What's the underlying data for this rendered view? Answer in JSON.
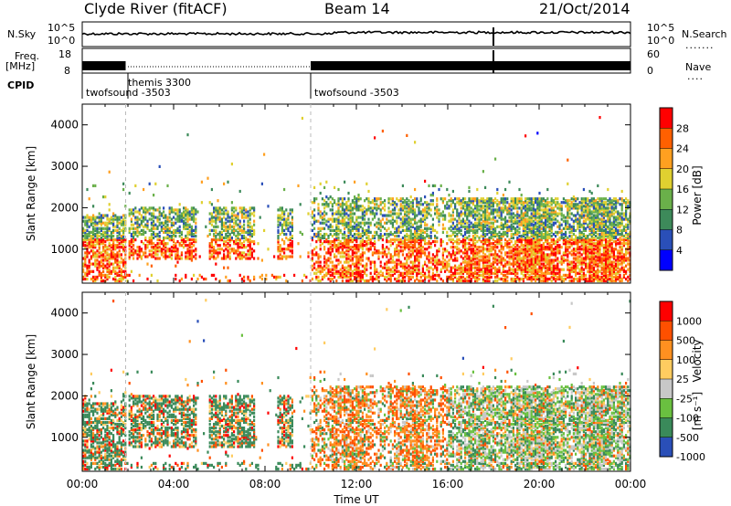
{
  "header": {
    "station": "Clyde River (fitACF)",
    "beam": "Beam 14",
    "date": "21/Oct/2014"
  },
  "strip": {
    "nsky_label": "N.Sky",
    "nsearch_label": "N.Search",
    "freq_label": "Freq.",
    "freq_unit": "[MHz]",
    "nave_label": "Nave",
    "cpid_label": "CPID",
    "noise_ticks": [
      "10^5",
      "10^0"
    ],
    "freq_ticks": [
      "18",
      "8"
    ],
    "nave_ticks": [
      "60",
      "0"
    ],
    "cpid_segments": [
      {
        "name": "twofsound -3503",
        "start_hour": 0.0,
        "end_hour": 1.9
      },
      {
        "name": "themis 3300",
        "start_hour": 1.9,
        "end_hour": 10.0
      },
      {
        "name": "twofsound -3503",
        "start_hour": 10.0,
        "end_hour": 24.0
      }
    ]
  },
  "colors": {
    "power": [
      "#0000ff",
      "#2a4fb8",
      "#3d8a5a",
      "#6ab04a",
      "#e0d030",
      "#ffa020",
      "#ff6000",
      "#ff0000"
    ],
    "velocity": [
      "#ff0000",
      "#ff5000",
      "#ff9020",
      "#ffcc60",
      "#c8c8c8",
      "#6ac040",
      "#3a8a5a",
      "#2a4fb8"
    ]
  },
  "chart_data": [
    {
      "type": "heatmap",
      "ylabel": "Slant Range [km]",
      "xlim": [
        0,
        24
      ],
      "ylim": [
        180,
        4500
      ],
      "yticks": [
        1000,
        2000,
        3000,
        4000
      ],
      "colorbar": {
        "label": "Power [dB]",
        "ticks": [
          "28",
          "24",
          "20",
          "16",
          "12",
          "8",
          "4"
        ],
        "range": [
          0,
          32
        ]
      }
    },
    {
      "type": "heatmap",
      "ylabel": "Slant Range [km]",
      "xlabel": "Time UT",
      "xlim": [
        0,
        24
      ],
      "ylim": [
        180,
        4500
      ],
      "xticks": [
        "00:00",
        "04:00",
        "08:00",
        "12:00",
        "16:00",
        "20:00",
        "00:00"
      ],
      "yticks": [
        1000,
        2000,
        3000,
        4000
      ],
      "colorbar": {
        "label": "Velocity",
        "unit": "[m s⁻¹]",
        "ticks": [
          "1000",
          "500",
          "100",
          "25",
          "-25",
          "-100",
          "-500",
          "-1000"
        ]
      }
    }
  ]
}
